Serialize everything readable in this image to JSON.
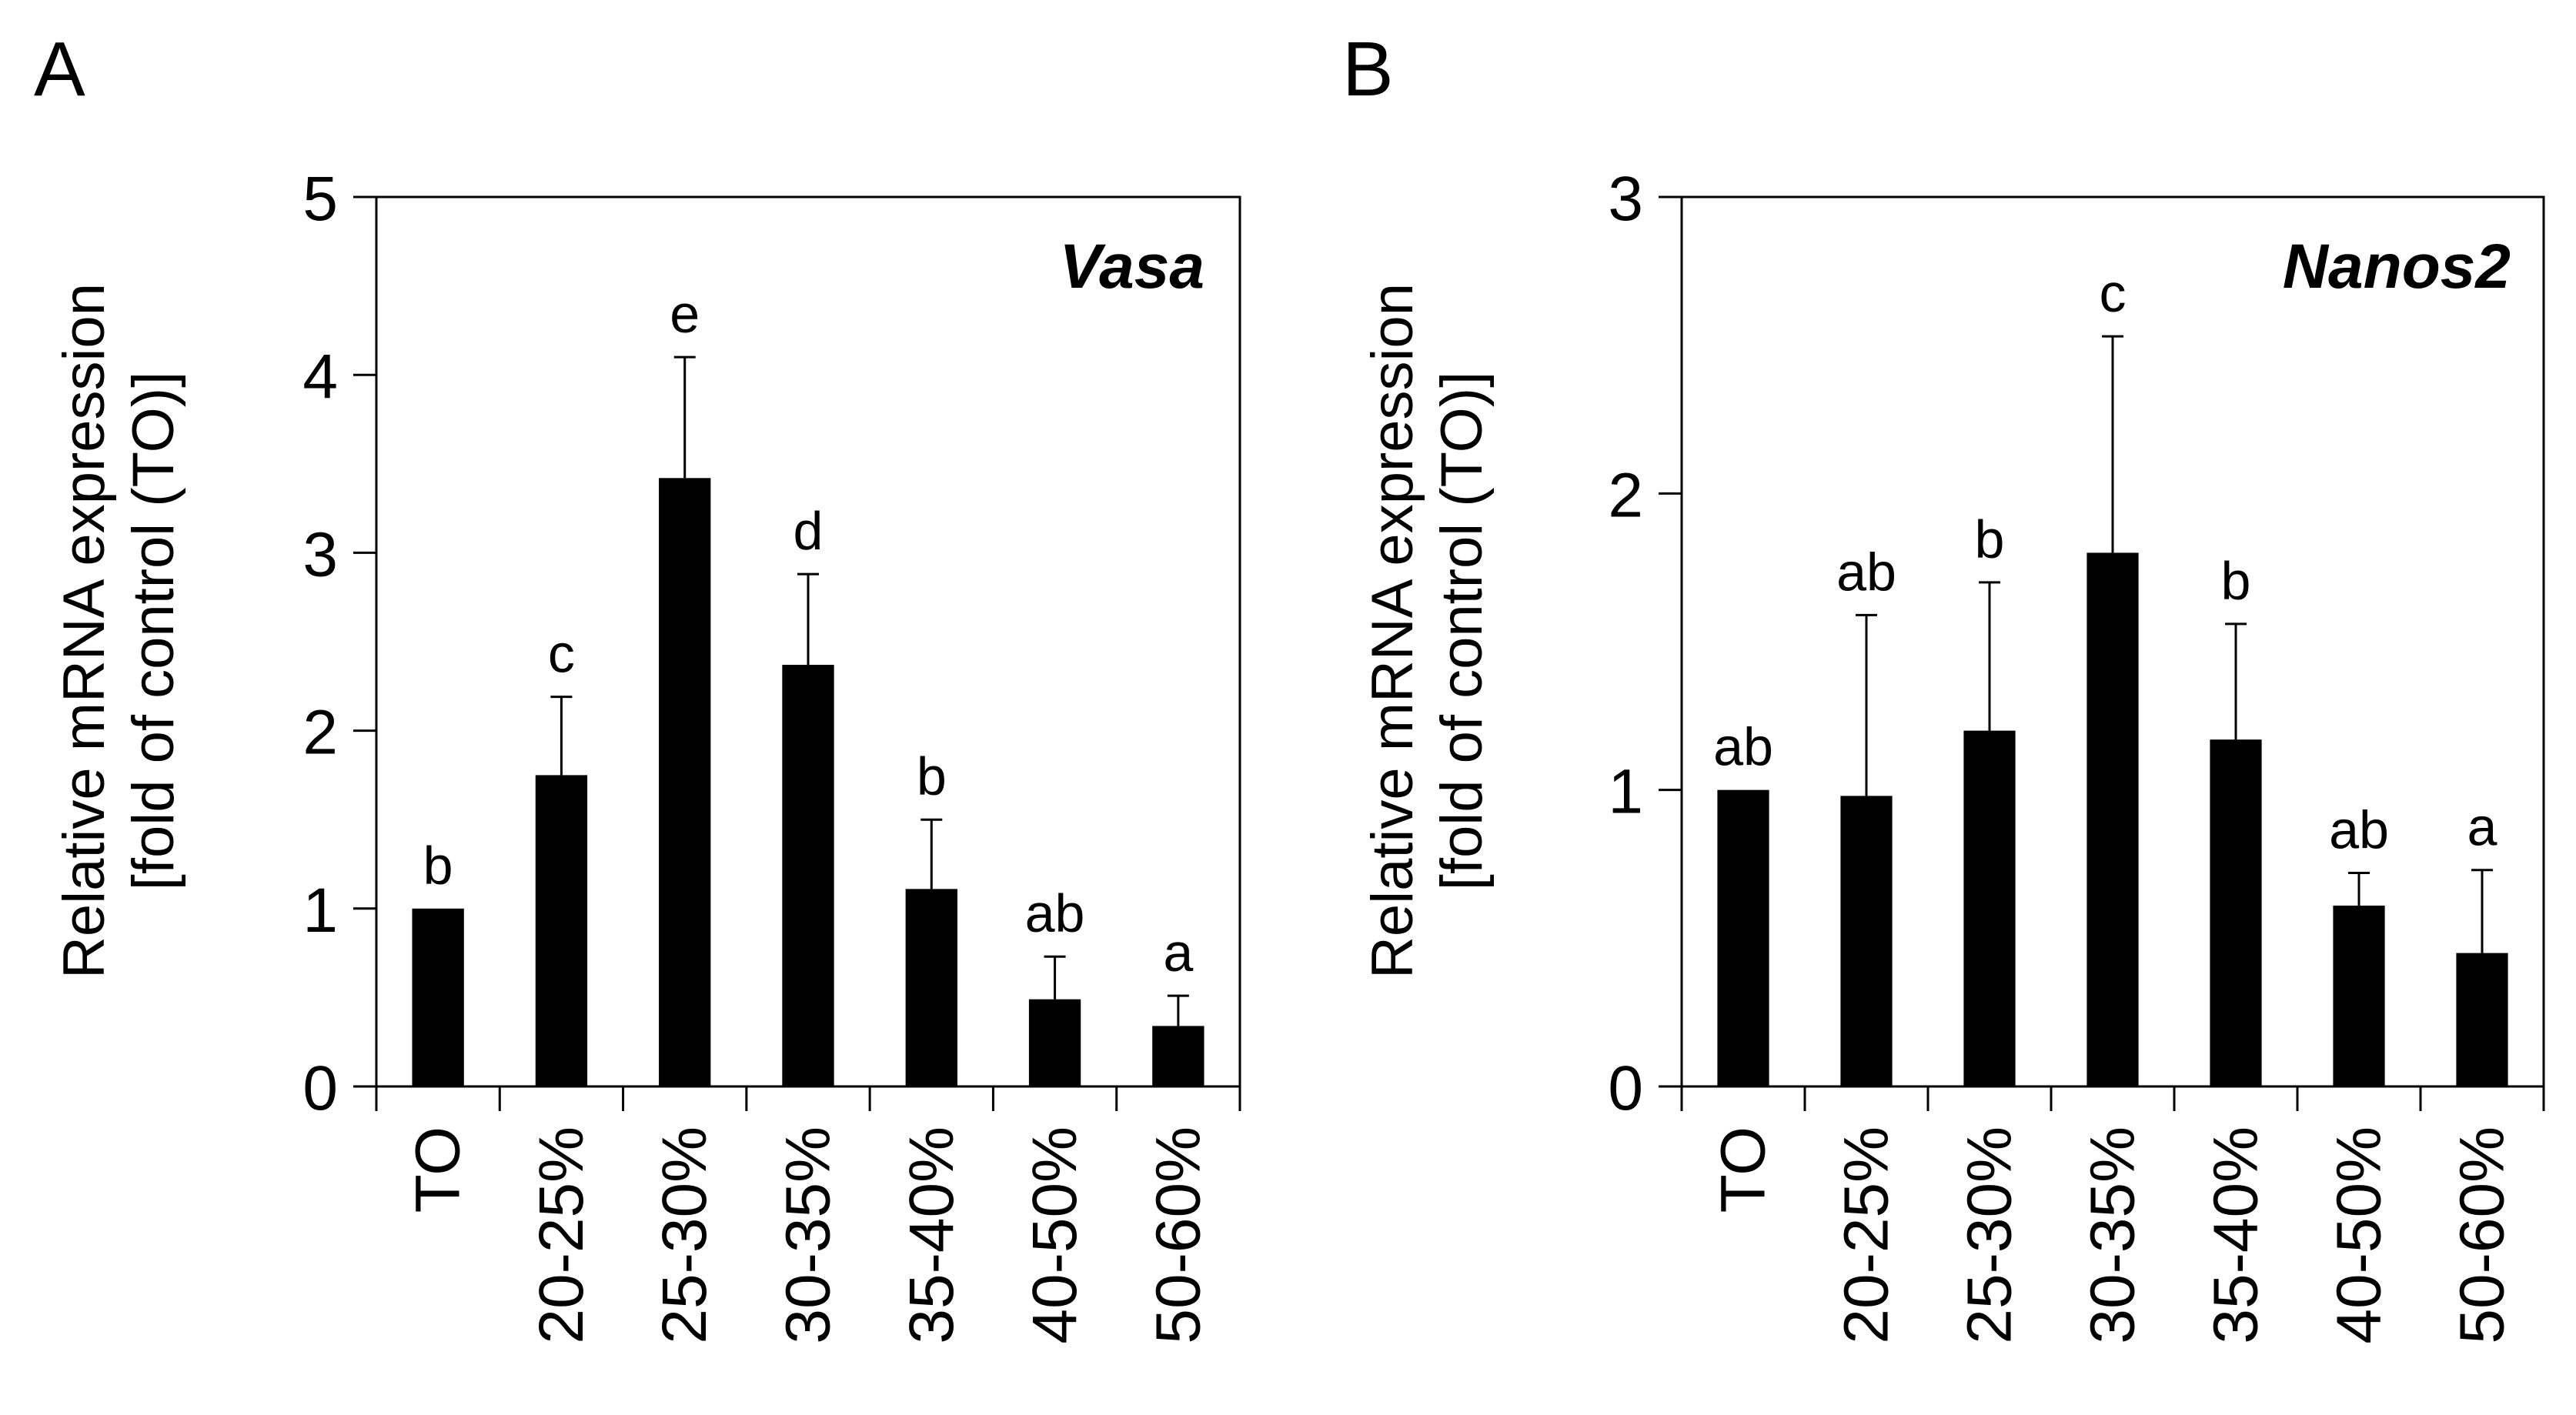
{
  "figure": {
    "colors": {
      "bar": "#000000",
      "axis": "#000000",
      "text": "#000000",
      "background": "#ffffff"
    }
  },
  "chart_data": [
    {
      "panel_label": "A",
      "type": "bar",
      "title": "Vasa",
      "xlabel": "",
      "ylabel": "Relative mRNA expression",
      "ylabel_line2": "[fold of control (TO)]",
      "ylim": [
        0,
        5
      ],
      "yticks": [
        "0",
        "1",
        "2",
        "3",
        "4",
        "5"
      ],
      "categories": [
        "TO",
        "20-25%",
        "25-30%",
        "30-35%",
        "35-40%",
        "40-50%",
        "50-60%"
      ],
      "values": [
        1.0,
        1.75,
        3.42,
        2.37,
        1.11,
        0.49,
        0.34
      ],
      "error_upper": [
        0.0,
        0.44,
        0.68,
        0.51,
        0.39,
        0.24,
        0.17
      ],
      "significance": [
        "b",
        "c",
        "e",
        "d",
        "b",
        "ab",
        "a"
      ],
      "legend": "none",
      "grid": false
    },
    {
      "panel_label": "B",
      "type": "bar",
      "title": "Nanos2",
      "xlabel": "",
      "ylabel": "Relative mRNA expression",
      "ylabel_line2": "[fold of control (TO)]",
      "ylim": [
        0,
        3
      ],
      "yticks": [
        "0",
        "1",
        "2",
        "3"
      ],
      "categories": [
        "TO",
        "20-25%",
        "25-30%",
        "30-35%",
        "35-40%",
        "40-50%",
        "50-60%"
      ],
      "values": [
        1.0,
        0.98,
        1.2,
        1.8,
        1.17,
        0.61,
        0.45
      ],
      "error_upper": [
        0.0,
        0.61,
        0.5,
        0.73,
        0.39,
        0.11,
        0.28
      ],
      "significance": [
        "ab",
        "ab",
        "b",
        "c",
        "b",
        "ab",
        "a"
      ],
      "legend": "none",
      "grid": false
    }
  ]
}
